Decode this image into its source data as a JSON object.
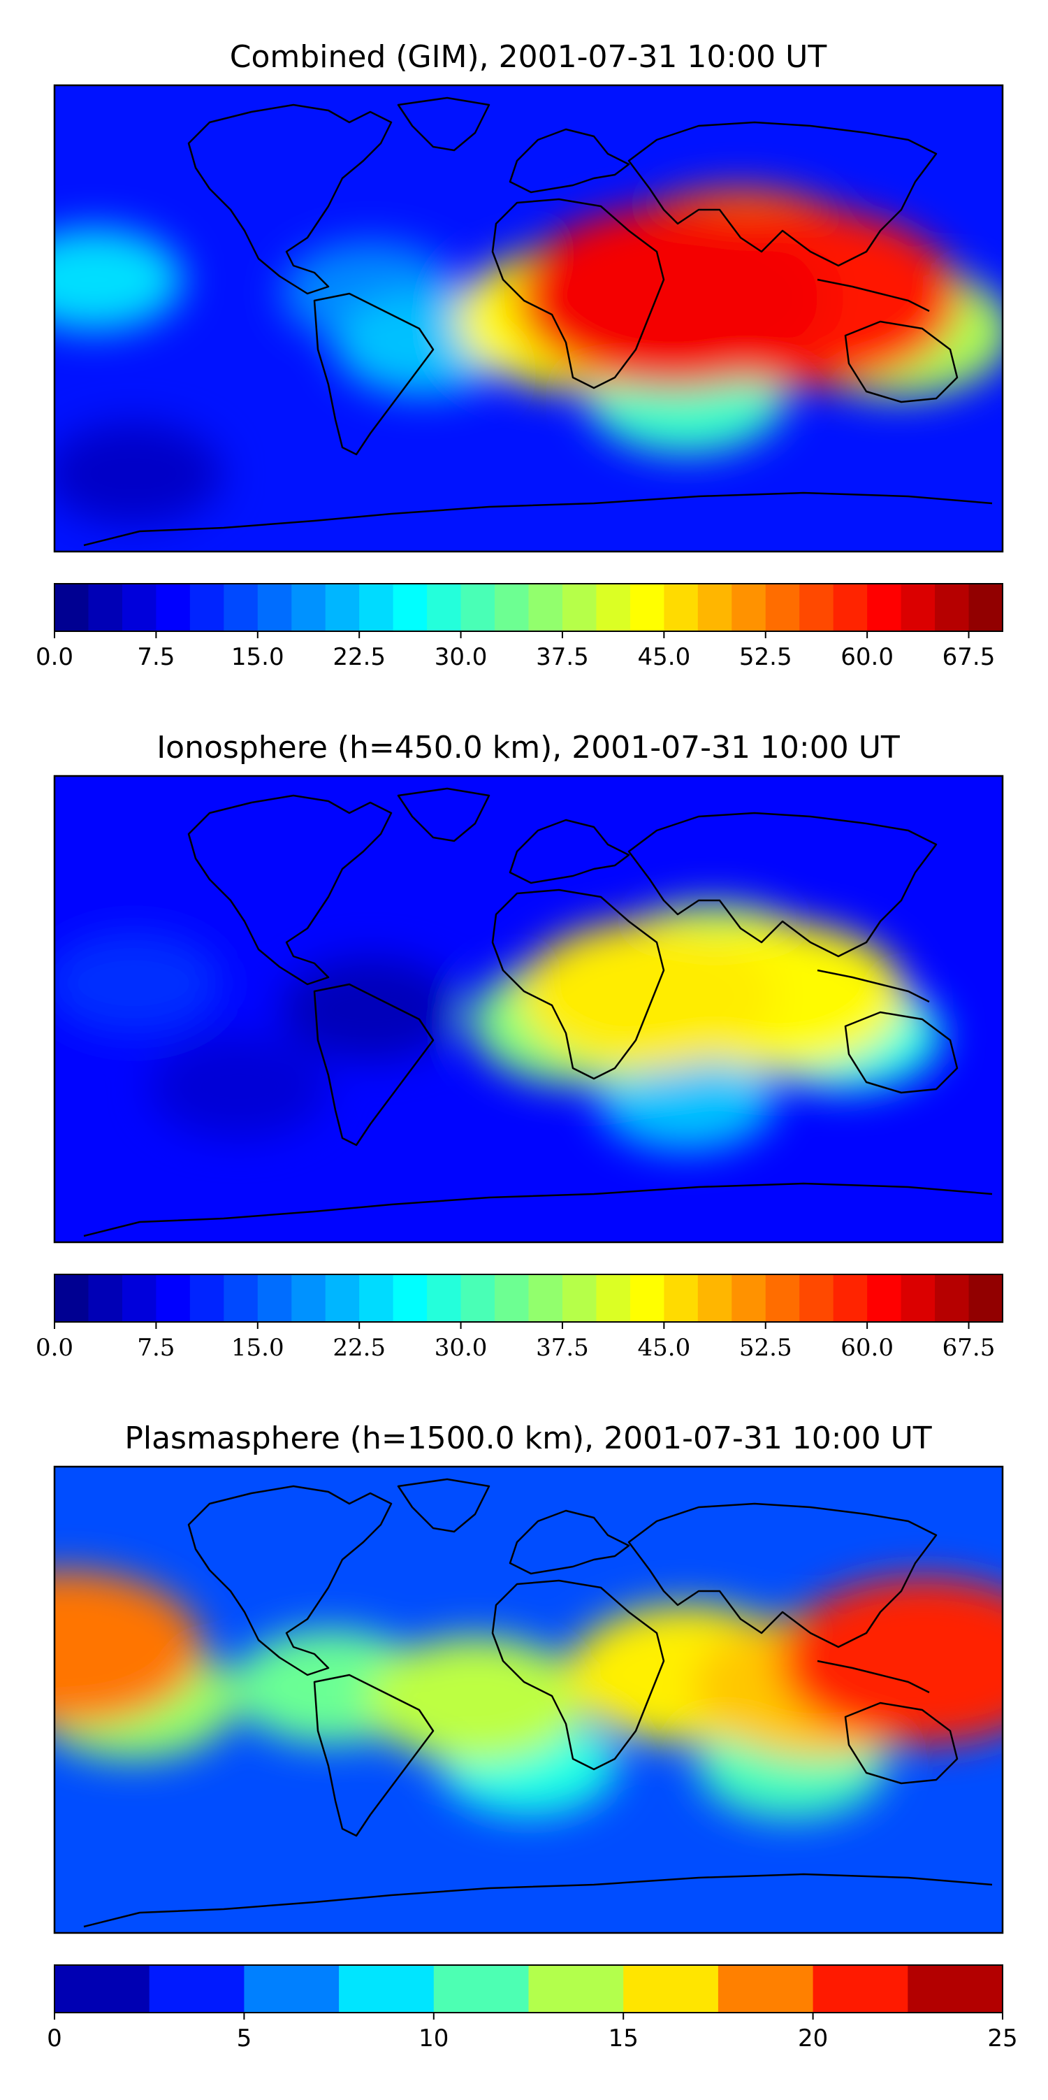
{
  "figure": {
    "panels": [
      {
        "title": "Combined (GIM), 2001-07-31 10:00 UT",
        "tick_font": "sans",
        "colorbar": {
          "vmin": 0,
          "vmax": 70,
          "step": 2.5,
          "tick_labels": [
            "0.0",
            "7.5",
            "15.0",
            "22.5",
            "30.0",
            "37.5",
            "45.0",
            "52.5",
            "60.0",
            "67.5"
          ],
          "tick_values": [
            0,
            7.5,
            15,
            22.5,
            30,
            37.5,
            45,
            52.5,
            60,
            67.5
          ]
        }
      },
      {
        "title": "Ionosphere  (h=450.0 km), 2001-07-31 10:00 UT",
        "tick_font": "serif",
        "colorbar": {
          "vmin": 0,
          "vmax": 70,
          "step": 2.5,
          "tick_labels": [
            "0.0",
            "7.5",
            "15.0",
            "22.5",
            "30.0",
            "37.5",
            "45.0",
            "52.5",
            "60.0",
            "67.5"
          ],
          "tick_values": [
            0,
            7.5,
            15,
            22.5,
            30,
            37.5,
            45,
            52.5,
            60,
            67.5
          ]
        }
      },
      {
        "title": "Plasmasphere (h=1500.0 km), 2001-07-31 10:00 UT",
        "tick_font": "sans",
        "colorbar": {
          "vmin": 0,
          "vmax": 25,
          "step": 2.5,
          "tick_labels": [
            "0",
            "5",
            "10",
            "15",
            "20",
            "25"
          ],
          "tick_values": [
            0,
            5,
            10,
            15,
            20,
            25
          ]
        }
      }
    ]
  },
  "chart_data": [
    {
      "type": "heatmap",
      "title": "Combined (GIM), 2001-07-31 10:00 UT",
      "colormap": "jet",
      "levels": {
        "min": 0,
        "max": 70,
        "step": 2.5
      },
      "colorbar_ticks": [
        0,
        7.5,
        15,
        22.5,
        30,
        37.5,
        45,
        52.5,
        60,
        67.5
      ],
      "background": 10,
      "features": [
        {
          "lon": 55,
          "lat": 8,
          "value": 62
        },
        {
          "lon": 105,
          "lat": 8,
          "value": 60
        },
        {
          "lon": 80,
          "lat": 18,
          "value": 55
        },
        {
          "lon": 20,
          "lat": 0,
          "value": 44
        },
        {
          "lon": 140,
          "lat": -5,
          "value": 38
        },
        {
          "lon": 60,
          "lat": -30,
          "value": 30
        },
        {
          "lon": -60,
          "lat": 10,
          "value": 18
        },
        {
          "lon": -165,
          "lat": 15,
          "value": 24
        },
        {
          "lon": -40,
          "lat": -10,
          "value": 22
        },
        {
          "lon": -150,
          "lat": -60,
          "value": 5
        }
      ]
    },
    {
      "type": "heatmap",
      "title": "Ionosphere  (h=450.0 km), 2001-07-31 10:00 UT",
      "colormap": "jet",
      "levels": {
        "min": 0,
        "max": 70,
        "step": 2.5
      },
      "colorbar_ticks": [
        0,
        7.5,
        15,
        22.5,
        30,
        37.5,
        45,
        52.5,
        60,
        67.5
      ],
      "background": 9,
      "features": [
        {
          "lon": 45,
          "lat": 5,
          "value": 45
        },
        {
          "lon": 95,
          "lat": 5,
          "value": 44
        },
        {
          "lon": 70,
          "lat": 15,
          "value": 38
        },
        {
          "lon": 20,
          "lat": -5,
          "value": 35
        },
        {
          "lon": 120,
          "lat": -10,
          "value": 28
        },
        {
          "lon": 60,
          "lat": -35,
          "value": 22
        },
        {
          "lon": -60,
          "lat": 0,
          "value": 4
        },
        {
          "lon": -110,
          "lat": -30,
          "value": 6
        },
        {
          "lon": -150,
          "lat": 10,
          "value": 12
        }
      ]
    },
    {
      "type": "heatmap",
      "title": "Plasmasphere (h=1500.0 km), 2001-07-31 10:00 UT",
      "colormap": "jet",
      "levels": {
        "min": 0,
        "max": 25,
        "step": 2.5
      },
      "colorbar_ticks": [
        0,
        5,
        10,
        15,
        20,
        25
      ],
      "background": 5,
      "features": [
        {
          "lon": 150,
          "lat": 15,
          "value": 21
        },
        {
          "lon": -175,
          "lat": 20,
          "value": 19
        },
        {
          "lon": 110,
          "lat": 5,
          "value": 17
        },
        {
          "lon": 60,
          "lat": 10,
          "value": 16
        },
        {
          "lon": -20,
          "lat": 0,
          "value": 14
        },
        {
          "lon": -75,
          "lat": 5,
          "value": 12
        },
        {
          "lon": 0,
          "lat": -25,
          "value": 10
        },
        {
          "lon": 100,
          "lat": -25,
          "value": 11
        },
        {
          "lon": -150,
          "lat": 0,
          "value": 13
        }
      ]
    }
  ]
}
